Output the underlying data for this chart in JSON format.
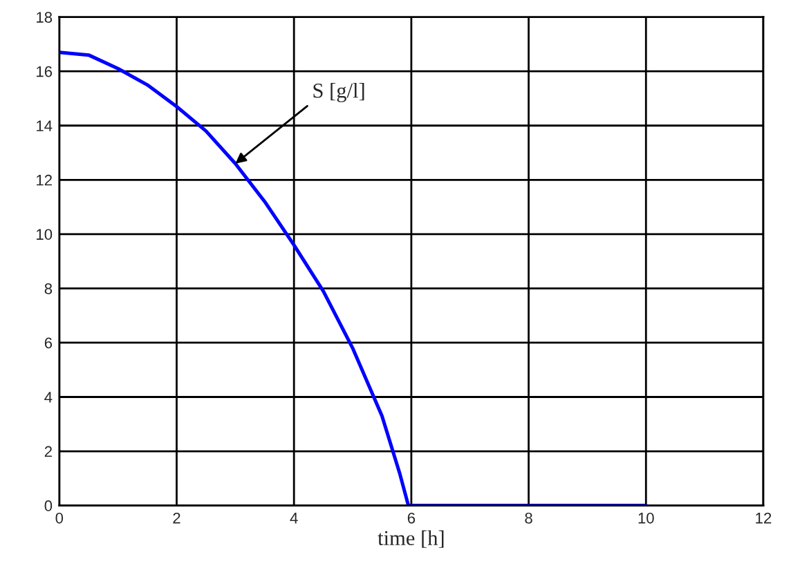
{
  "chart_data": {
    "type": "line",
    "xlabel": "time [h]",
    "x": [
      0,
      0.5,
      1,
      1.5,
      2,
      2.5,
      3,
      3.5,
      4,
      4.5,
      5,
      5.5,
      5.8,
      5.95,
      6,
      8,
      10
    ],
    "series": [
      {
        "color": "#0000ff",
        "values": [
          16.7,
          16.6,
          16.1,
          15.5,
          14.7,
          13.8,
          12.6,
          11.2,
          9.6,
          7.9,
          5.8,
          3.3,
          1.2,
          0,
          0,
          0,
          0
        ]
      }
    ],
    "annotations": [
      {
        "text": "S [g/l]",
        "x": 3,
        "y": 12.6
      }
    ],
    "xlim": [
      0,
      12
    ],
    "xticks": [
      0,
      2,
      4,
      6,
      8,
      10,
      12
    ],
    "ylim": [
      0,
      18
    ],
    "yticks": [
      0,
      2,
      4,
      6,
      8,
      10,
      12,
      14,
      16,
      18
    ],
    "grid": true,
    "marker": "none",
    "line_style": "solid"
  }
}
